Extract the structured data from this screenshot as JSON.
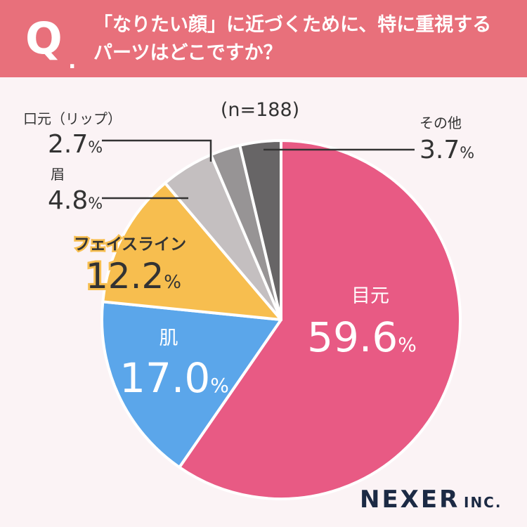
{
  "header": {
    "q_mark": "Q",
    "q_dot": ".",
    "question_line1": "「なりたい顔」に近づくために、特に重視する",
    "question_line2": "パーツはどこですか？"
  },
  "sample_size": "(n=188)",
  "brand": {
    "name": "NEXER",
    "suffix": "INC."
  },
  "colors": {
    "header": "#e8707b",
    "background": "#fbf3f5",
    "text": "#333333"
  },
  "chart_data": {
    "type": "pie",
    "start_angle_deg": 0,
    "direction": "clockwise",
    "slices": [
      {
        "label": "目元",
        "value": 59.6,
        "display": "59.6",
        "color": "#e85a84"
      },
      {
        "label": "肌",
        "value": 17.0,
        "display": "17.0",
        "color": "#5ba6ea"
      },
      {
        "label": "フェイスライン",
        "value": 12.2,
        "display": "12.2",
        "color": "#f7be4f"
      },
      {
        "label": "眉",
        "value": 4.8,
        "display": "4.8",
        "color": "#c4bfc0"
      },
      {
        "label": "口元（リップ）",
        "value": 2.7,
        "display": "2.7",
        "color": "#979495"
      },
      {
        "label": "その他",
        "value": 3.7,
        "display": "3.7",
        "color": "#676566"
      }
    ],
    "unit": "%"
  }
}
